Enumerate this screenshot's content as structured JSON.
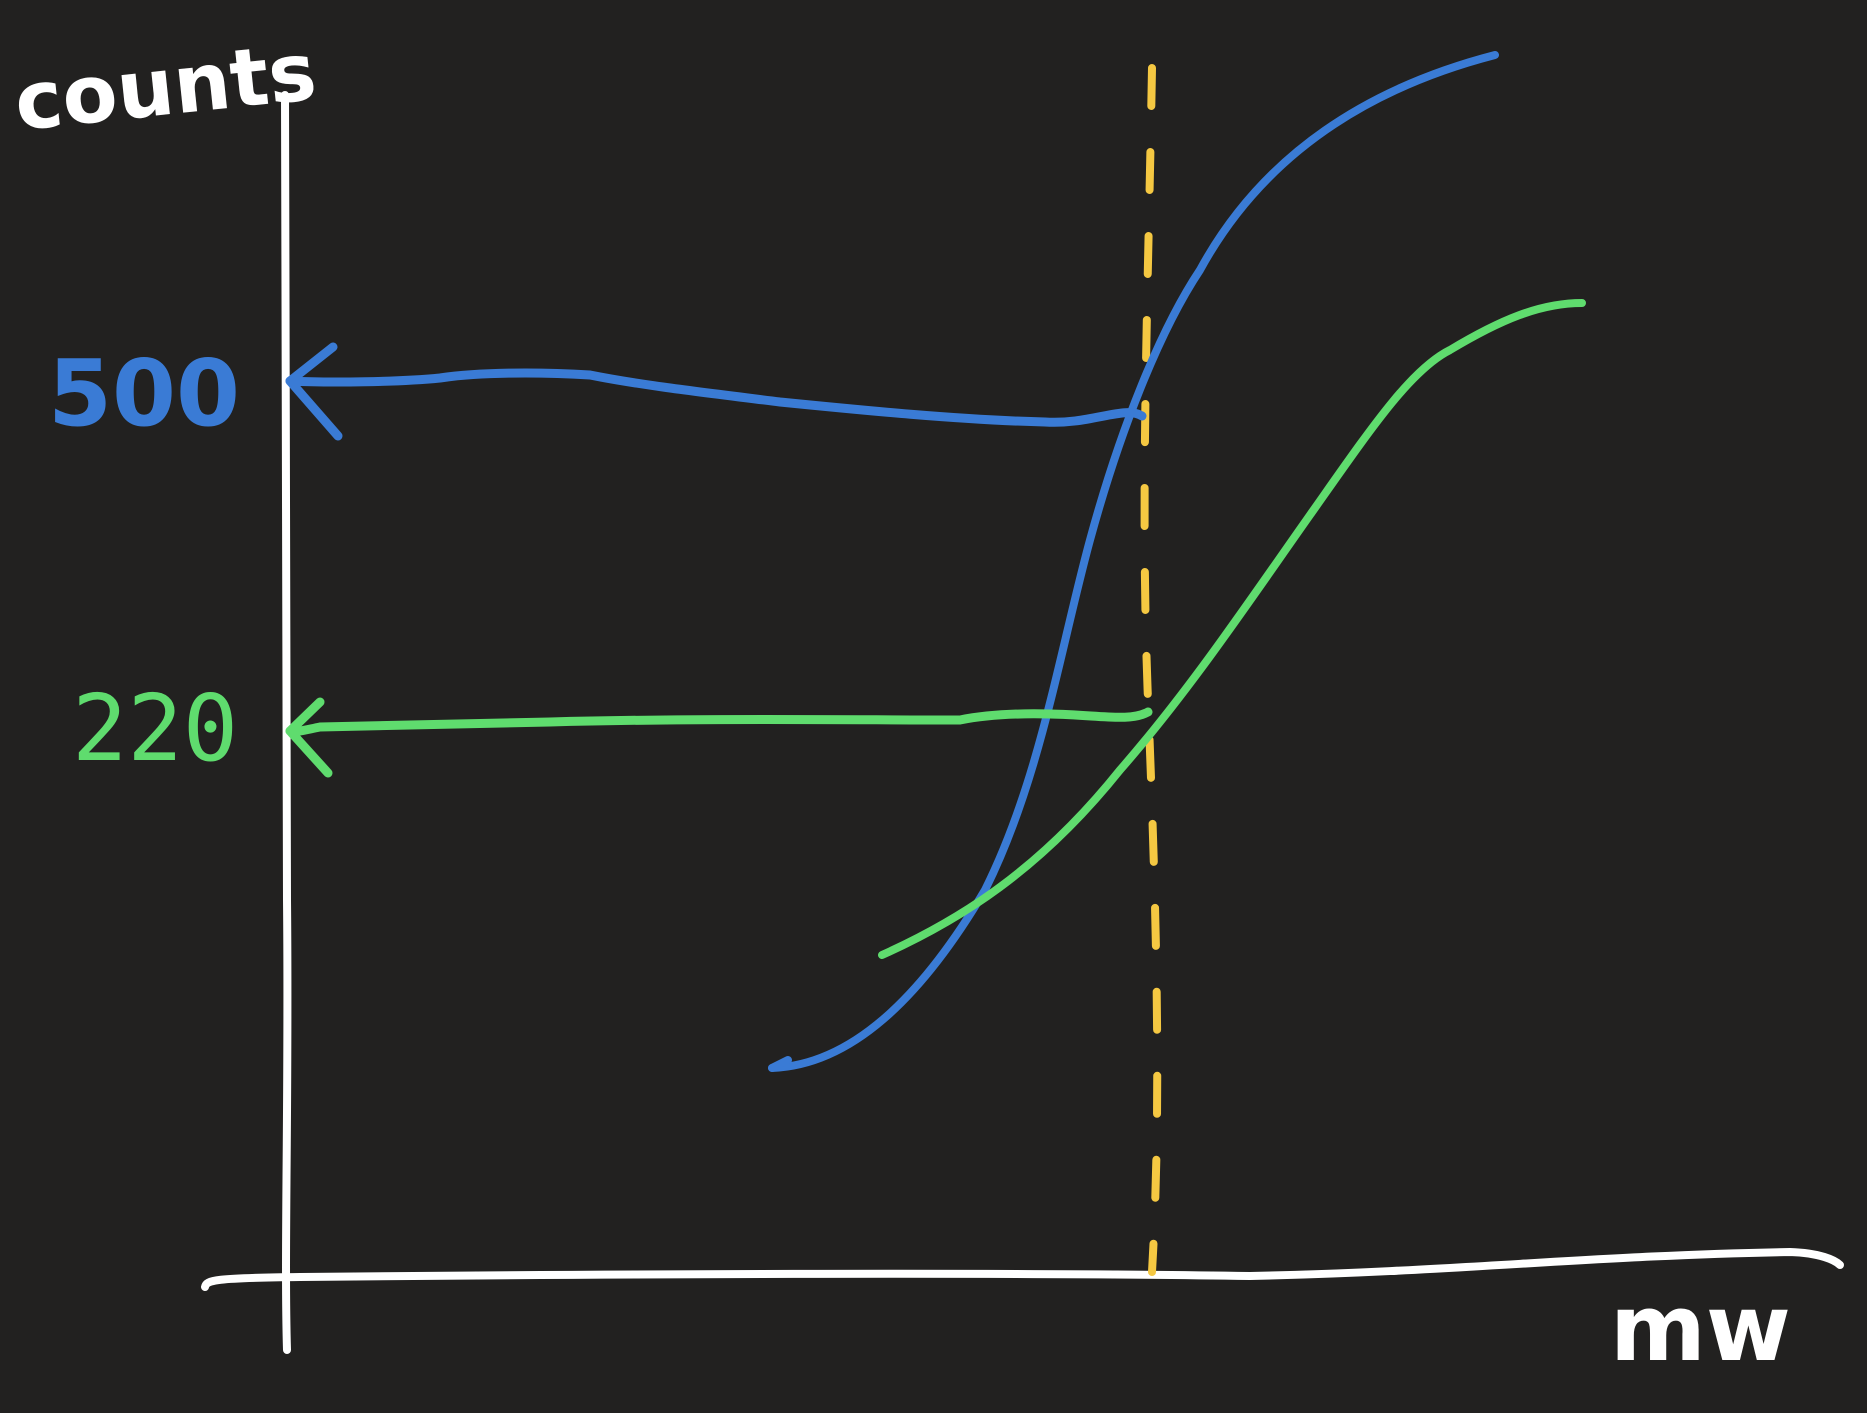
{
  "chart_data": {
    "type": "line",
    "title": "",
    "xlabel": "mw",
    "ylabel": "counts",
    "series": [
      {
        "color": "#3a7bd5",
        "points": [
          [
            0.52,
            0.0
          ],
          [
            0.6,
            0.12
          ],
          [
            0.68,
            0.45
          ],
          [
            0.72,
            0.63
          ],
          [
            0.8,
            0.87
          ],
          [
            0.9,
            0.96
          ],
          [
            1.0,
            1.0
          ]
        ],
        "readout_label": "500",
        "readout_value": 500
      },
      {
        "color": "#5fdc6e",
        "points": [
          [
            0.58,
            0.22
          ],
          [
            0.66,
            0.33
          ],
          [
            0.72,
            0.45
          ],
          [
            0.8,
            0.64
          ],
          [
            0.88,
            0.8
          ],
          [
            0.96,
            0.88
          ],
          [
            1.0,
            0.89
          ]
        ],
        "readout_label": "220",
        "readout_value": 220
      }
    ],
    "marker": {
      "type": "vertical-dashed",
      "color": "#f5c842"
    },
    "grid": false,
    "legend": "none",
    "colors": {
      "background": "#222120",
      "axes": "#ffffff",
      "blue": "#3a7bd5",
      "green": "#5fdc6e",
      "yellow": "#f5c842"
    }
  }
}
